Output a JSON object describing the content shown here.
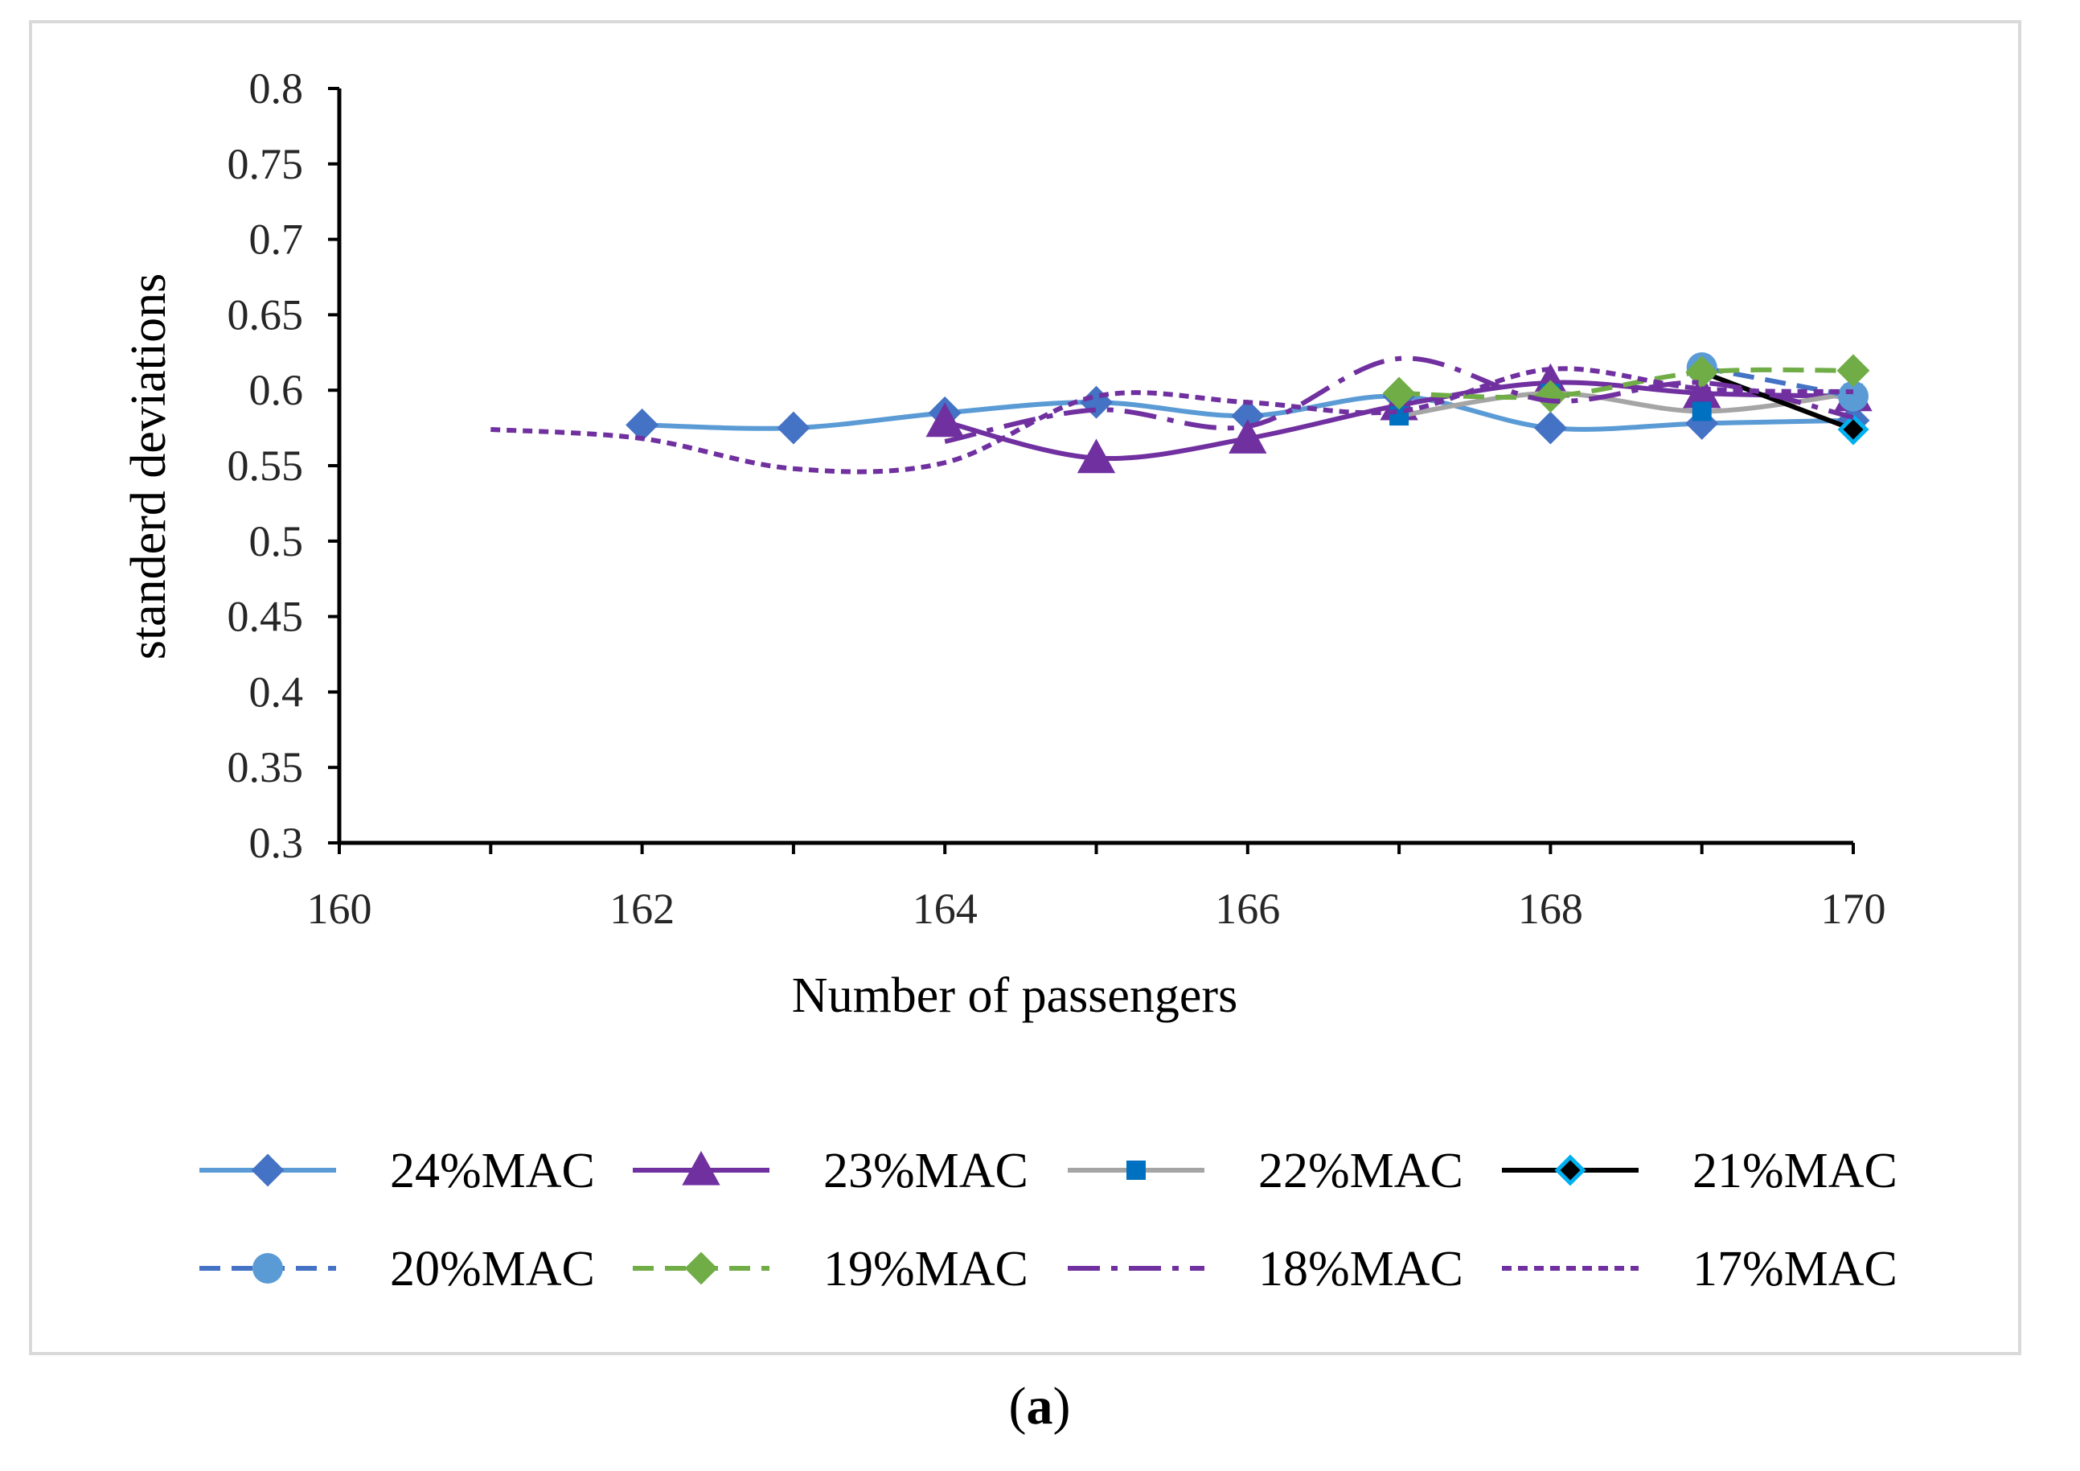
{
  "panel_label": {
    "open": "(",
    "letter": "a",
    "close": ")"
  },
  "chart_data": {
    "type": "line",
    "title": "",
    "xlabel": "Number of passengers",
    "ylabel": "standerd deviations",
    "xlim": [
      160,
      170
    ],
    "ylim": [
      0.3,
      0.8
    ],
    "x_ticks": [
      "160",
      "162",
      "164",
      "166",
      "168",
      "170"
    ],
    "y_ticks": [
      "0.3",
      "0.35",
      "0.4",
      "0.45",
      "0.5",
      "0.55",
      "0.6",
      "0.65",
      "0.7",
      "0.75",
      "0.8"
    ],
    "legend_position": "bottom",
    "series": [
      {
        "name": "24%MAC",
        "color": "#5b9bd5",
        "marker_color": "#4472c4",
        "marker": "diamond",
        "dash": "solid",
        "x": [
          162,
          163,
          164,
          165,
          166,
          167,
          168,
          169,
          170
        ],
        "y": [
          0.577,
          0.575,
          0.585,
          0.592,
          0.583,
          0.596,
          0.575,
          0.578,
          0.58
        ]
      },
      {
        "name": "23%MAC",
        "color": "#7030a0",
        "marker_color": "#7030a0",
        "marker": "triangle",
        "dash": "solid",
        "x": [
          164,
          165,
          166,
          167,
          168,
          169,
          170
        ],
        "y": [
          0.579,
          0.555,
          0.568,
          0.59,
          0.605,
          0.598,
          0.596
        ]
      },
      {
        "name": "22%MAC",
        "color": "#a5a5a5",
        "marker_color": "#0070c0",
        "marker": "square",
        "dash": "solid",
        "x": [
          167,
          168,
          169,
          170
        ],
        "y": [
          0.583,
          0.598,
          0.586,
          0.598
        ]
      },
      {
        "name": "21%MAC",
        "color": "#000000",
        "marker_color": "#000000",
        "marker_stroke": "#00b0f0",
        "marker": "diamond-outline",
        "dash": "solid",
        "x": [
          169,
          170
        ],
        "y": [
          0.612,
          0.574
        ]
      },
      {
        "name": "20%MAC",
        "color": "#4472c4",
        "marker_color": "#5b9bd5",
        "marker": "circle",
        "dash": "dash",
        "x": [
          169,
          170
        ],
        "y": [
          0.615,
          0.596
        ]
      },
      {
        "name": "19%MAC",
        "color": "#70ad47",
        "marker_color": "#70ad47",
        "marker": "diamond",
        "dash": "dash",
        "x": [
          167,
          168,
          169,
          170
        ],
        "y": [
          0.598,
          0.596,
          0.612,
          0.613
        ]
      },
      {
        "name": "18%MAC",
        "color": "#7030a0",
        "marker_color": "#7030a0",
        "marker": "none",
        "dash": "dashdot",
        "x": [
          164,
          165,
          166,
          167,
          168,
          169,
          170
        ],
        "y": [
          0.566,
          0.587,
          0.576,
          0.621,
          0.593,
          0.605,
          0.582
        ]
      },
      {
        "name": "17%MAC",
        "color": "#7030a0",
        "marker_color": "#7030a0",
        "marker": "none",
        "dash": "dot",
        "x": [
          161,
          162,
          163,
          164,
          165,
          166,
          167,
          168,
          169,
          170
        ],
        "y": [
          0.574,
          0.568,
          0.548,
          0.552,
          0.596,
          0.592,
          0.586,
          0.614,
          0.601,
          0.599
        ]
      }
    ]
  }
}
